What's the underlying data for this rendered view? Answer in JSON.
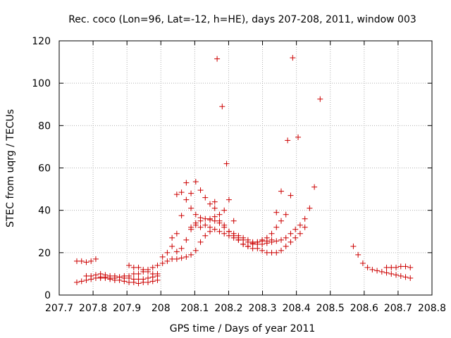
{
  "chart_data": {
    "type": "scatter",
    "title": "Rec. coco (Lon=96, Lat=-12, h=HE), days 207-208, 2011, window 003",
    "xlabel": "GPS time / Days of year 2011",
    "ylabel": "STEC from uqrg / TECUs",
    "xlim": [
      207.7,
      208.8
    ],
    "ylim": [
      0,
      120
    ],
    "x_ticks": [
      "207.7",
      "207.8",
      "207.9",
      "208",
      "208.1",
      "208.2",
      "208.3",
      "208.4",
      "208.5",
      "208.6",
      "208.7",
      "208.8"
    ],
    "y_ticks": [
      "0",
      "20",
      "40",
      "60",
      "80",
      "100",
      "120"
    ],
    "grid": true,
    "marker": "+",
    "color": "#cc0000",
    "points": [
      [
        207.752,
        16
      ],
      [
        207.766,
        16
      ],
      [
        207.78,
        15.5
      ],
      [
        207.794,
        16
      ],
      [
        207.808,
        17
      ],
      [
        207.752,
        6
      ],
      [
        207.766,
        6.5
      ],
      [
        207.78,
        7
      ],
      [
        207.794,
        7.5
      ],
      [
        207.808,
        8
      ],
      [
        207.822,
        8.5
      ],
      [
        207.836,
        8
      ],
      [
        207.85,
        7.5
      ],
      [
        207.864,
        7
      ],
      [
        207.878,
        7
      ],
      [
        207.892,
        6.5
      ],
      [
        207.906,
        6
      ],
      [
        207.92,
        6
      ],
      [
        207.934,
        5.5
      ],
      [
        207.948,
        6
      ],
      [
        207.962,
        6
      ],
      [
        207.976,
        6.5
      ],
      [
        207.99,
        7
      ],
      [
        207.78,
        9
      ],
      [
        207.794,
        9
      ],
      [
        207.808,
        9.5
      ],
      [
        207.822,
        10
      ],
      [
        207.836,
        9.5
      ],
      [
        207.85,
        9
      ],
      [
        207.864,
        9
      ],
      [
        207.878,
        8.5
      ],
      [
        207.892,
        8
      ],
      [
        207.906,
        8
      ],
      [
        207.92,
        7.5
      ],
      [
        207.934,
        7.5
      ],
      [
        207.948,
        7.5
      ],
      [
        207.962,
        8
      ],
      [
        207.976,
        8.5
      ],
      [
        207.99,
        9
      ],
      [
        207.822,
        8
      ],
      [
        207.836,
        8.5
      ],
      [
        207.85,
        8
      ],
      [
        207.864,
        8
      ],
      [
        207.878,
        8.5
      ],
      [
        207.892,
        9
      ],
      [
        207.906,
        9
      ],
      [
        207.92,
        10
      ],
      [
        207.934,
        10
      ],
      [
        207.948,
        11
      ],
      [
        207.962,
        12
      ],
      [
        207.976,
        13
      ],
      [
        207.99,
        14
      ],
      [
        207.906,
        14
      ],
      [
        207.92,
        13
      ],
      [
        207.934,
        13
      ],
      [
        207.948,
        12
      ],
      [
        207.962,
        11
      ],
      [
        207.976,
        10
      ],
      [
        207.99,
        10
      ],
      [
        208.005,
        15
      ],
      [
        208.019,
        16
      ],
      [
        208.033,
        17
      ],
      [
        208.047,
        17
      ],
      [
        208.061,
        17.5
      ],
      [
        208.075,
        18
      ],
      [
        208.089,
        19
      ],
      [
        208.103,
        21
      ],
      [
        208.117,
        25
      ],
      [
        208.131,
        28
      ],
      [
        208.145,
        30
      ],
      [
        208.005,
        18
      ],
      [
        208.019,
        20
      ],
      [
        208.033,
        23
      ],
      [
        208.047,
        20.5
      ],
      [
        208.061,
        22
      ],
      [
        208.075,
        26
      ],
      [
        208.089,
        31
      ],
      [
        208.103,
        33
      ],
      [
        208.117,
        35
      ],
      [
        208.033,
        27
      ],
      [
        208.047,
        29
      ],
      [
        208.061,
        37.5
      ],
      [
        208.075,
        45
      ],
      [
        208.089,
        48
      ],
      [
        208.103,
        53.5
      ],
      [
        208.117,
        49.5
      ],
      [
        208.131,
        46
      ],
      [
        208.145,
        43
      ],
      [
        208.159,
        41
      ],
      [
        208.047,
        47.5
      ],
      [
        208.061,
        48.5
      ],
      [
        208.075,
        53
      ],
      [
        208.089,
        41
      ],
      [
        208.103,
        38
      ],
      [
        208.117,
        36.5
      ],
      [
        208.131,
        36
      ],
      [
        208.145,
        35.5
      ],
      [
        208.159,
        35
      ],
      [
        208.173,
        34
      ],
      [
        208.187,
        33
      ],
      [
        208.201,
        30
      ],
      [
        208.215,
        28
      ],
      [
        208.229,
        27
      ],
      [
        208.243,
        26
      ],
      [
        208.257,
        25
      ],
      [
        208.271,
        24.5
      ],
      [
        208.285,
        25
      ],
      [
        208.299,
        25.5
      ],
      [
        208.313,
        25.5
      ],
      [
        208.327,
        26
      ],
      [
        208.341,
        25.5
      ],
      [
        208.355,
        26
      ],
      [
        208.369,
        27
      ],
      [
        208.383,
        29
      ],
      [
        208.397,
        31
      ],
      [
        208.411,
        33
      ],
      [
        208.425,
        36
      ],
      [
        208.439,
        41
      ],
      [
        208.453,
        51
      ],
      [
        208.089,
        32
      ],
      [
        208.103,
        34
      ],
      [
        208.117,
        32
      ],
      [
        208.131,
        33
      ],
      [
        208.145,
        32
      ],
      [
        208.159,
        31
      ],
      [
        208.173,
        30
      ],
      [
        208.187,
        29
      ],
      [
        208.201,
        28
      ],
      [
        208.215,
        27
      ],
      [
        208.229,
        26
      ],
      [
        208.243,
        24
      ],
      [
        208.257,
        23
      ],
      [
        208.271,
        22
      ],
      [
        208.285,
        22
      ],
      [
        208.299,
        21
      ],
      [
        208.313,
        20
      ],
      [
        208.327,
        20
      ],
      [
        208.341,
        20
      ],
      [
        208.355,
        21
      ],
      [
        208.369,
        23
      ],
      [
        208.383,
        25
      ],
      [
        208.397,
        27
      ],
      [
        208.411,
        29
      ],
      [
        208.425,
        32
      ],
      [
        208.145,
        36
      ],
      [
        208.159,
        37
      ],
      [
        208.173,
        38
      ],
      [
        208.187,
        40
      ],
      [
        208.201,
        45
      ],
      [
        208.215,
        35
      ],
      [
        208.229,
        26
      ],
      [
        208.243,
        24
      ],
      [
        208.257,
        23
      ],
      [
        208.271,
        24
      ],
      [
        208.285,
        25
      ],
      [
        208.299,
        26
      ],
      [
        208.313,
        27
      ],
      [
        208.327,
        29
      ],
      [
        208.341,
        32
      ],
      [
        208.355,
        35
      ],
      [
        208.369,
        38
      ],
      [
        208.159,
        44
      ],
      [
        208.173,
        35
      ],
      [
        208.187,
        32
      ],
      [
        208.201,
        30
      ],
      [
        208.215,
        29
      ],
      [
        208.229,
        28
      ],
      [
        208.243,
        27
      ],
      [
        208.257,
        26
      ],
      [
        208.271,
        25
      ],
      [
        208.285,
        24
      ],
      [
        208.299,
        24
      ],
      [
        208.313,
        24.5
      ],
      [
        208.327,
        25
      ],
      [
        208.341,
        39
      ],
      [
        208.355,
        49
      ],
      [
        208.383,
        47
      ],
      [
        208.166,
        111.5
      ],
      [
        208.181,
        89
      ],
      [
        208.194,
        62
      ],
      [
        208.374,
        73
      ],
      [
        208.389,
        112
      ],
      [
        208.405,
        74.5
      ],
      [
        208.47,
        92.5
      ],
      [
        208.568,
        23
      ],
      [
        208.582,
        19
      ],
      [
        208.596,
        15
      ],
      [
        208.61,
        13
      ],
      [
        208.624,
        12
      ],
      [
        208.638,
        11.5
      ],
      [
        208.652,
        11
      ],
      [
        208.666,
        10.5
      ],
      [
        208.68,
        10
      ],
      [
        208.694,
        9.5
      ],
      [
        208.708,
        9
      ],
      [
        208.722,
        8.5
      ],
      [
        208.736,
        8
      ],
      [
        208.666,
        13
      ],
      [
        208.68,
        13
      ],
      [
        208.694,
        13
      ],
      [
        208.708,
        13.5
      ],
      [
        208.722,
        13.5
      ],
      [
        208.736,
        13
      ]
    ]
  }
}
